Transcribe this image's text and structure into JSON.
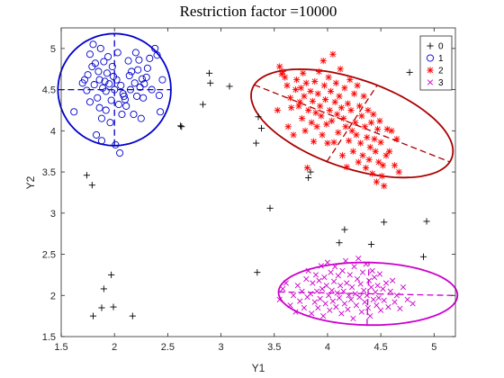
{
  "chart_data": {
    "type": "scatter",
    "title": "Restriction factor =10000",
    "xlabel": "Y1",
    "ylabel": "Y2",
    "xlim": [
      1.5,
      5.2
    ],
    "ylim": [
      1.5,
      5.25
    ],
    "xticks": [
      1.5,
      2,
      2.5,
      3,
      3.5,
      4,
      4.5,
      5
    ],
    "xtick_labels": [
      "1.5",
      "2",
      "2.5",
      "3",
      "3.5",
      "4",
      "4.5",
      "5"
    ],
    "yticks": [
      1.5,
      2,
      2.5,
      3,
      3.5,
      4,
      4.5,
      5
    ],
    "ytick_labels": [
      "1.5",
      "2",
      "2.5",
      "3",
      "3.5",
      "4",
      "4.5",
      "5"
    ],
    "grid": false,
    "legend_position": "top-right",
    "series": [
      {
        "name": "0",
        "marker": "plus",
        "color": "#000000",
        "points": [
          [
            1.74,
            3.46
          ],
          [
            1.79,
            3.34
          ],
          [
            1.8,
            1.75
          ],
          [
            1.88,
            1.85
          ],
          [
            1.9,
            2.08
          ],
          [
            1.97,
            2.25
          ],
          [
            1.99,
            1.86
          ],
          [
            2.17,
            1.75
          ],
          [
            2.62,
            4.06
          ],
          [
            2.63,
            4.05
          ],
          [
            2.83,
            4.32
          ],
          [
            2.89,
            4.7
          ],
          [
            2.9,
            4.58
          ],
          [
            3.08,
            4.54
          ],
          [
            3.33,
            3.85
          ],
          [
            3.34,
            2.28
          ],
          [
            3.35,
            4.17
          ],
          [
            3.38,
            4.03
          ],
          [
            3.46,
            3.06
          ],
          [
            3.82,
            3.43
          ],
          [
            3.84,
            3.5
          ],
          [
            4.11,
            2.64
          ],
          [
            4.16,
            2.8
          ],
          [
            4.41,
            2.62
          ],
          [
            4.53,
            2.89
          ],
          [
            4.77,
            4.71
          ],
          [
            4.9,
            2.47
          ],
          [
            4.93,
            2.9
          ]
        ]
      },
      {
        "name": "1",
        "marker": "circle",
        "color": "#0000cc",
        "points": [
          [
            1.62,
            4.23
          ],
          [
            1.7,
            4.58
          ],
          [
            1.72,
            4.62
          ],
          [
            1.74,
            4.49
          ],
          [
            1.75,
            4.68
          ],
          [
            1.77,
            4.35
          ],
          [
            1.77,
            4.93
          ],
          [
            1.79,
            4.78
          ],
          [
            1.8,
            5.05
          ],
          [
            1.81,
            4.56
          ],
          [
            1.82,
            4.82
          ],
          [
            1.83,
            3.95
          ],
          [
            1.84,
            4.4
          ],
          [
            1.85,
            4.72
          ],
          [
            1.86,
            4.62
          ],
          [
            1.86,
            4.28
          ],
          [
            1.87,
            5.0
          ],
          [
            1.88,
            4.15
          ],
          [
            1.88,
            3.88
          ],
          [
            1.89,
            4.52
          ],
          [
            1.9,
            4.84
          ],
          [
            1.91,
            4.6
          ],
          [
            1.92,
            4.48
          ],
          [
            1.92,
            4.25
          ],
          [
            1.93,
            4.7
          ],
          [
            1.94,
            4.9
          ],
          [
            1.95,
            4.57
          ],
          [
            1.96,
            4.1
          ],
          [
            1.97,
            4.37
          ],
          [
            1.98,
            4.78
          ],
          [
            1.99,
            4.66
          ],
          [
            2.0,
            4.5
          ],
          [
            2.01,
            3.83
          ],
          [
            2.02,
            4.62
          ],
          [
            2.03,
            4.95
          ],
          [
            2.04,
            4.32
          ],
          [
            2.05,
            3.73
          ],
          [
            2.06,
            4.55
          ],
          [
            2.07,
            4.2
          ],
          [
            2.08,
            4.45
          ],
          [
            2.09,
            4.42
          ],
          [
            2.1,
            4.38
          ],
          [
            2.11,
            4.3
          ],
          [
            2.13,
            4.85
          ],
          [
            2.14,
            4.67
          ],
          [
            2.15,
            4.5
          ],
          [
            2.16,
            4.72
          ],
          [
            2.18,
            4.2
          ],
          [
            2.19,
            4.58
          ],
          [
            2.2,
            4.95
          ],
          [
            2.21,
            4.42
          ],
          [
            2.22,
            4.74
          ],
          [
            2.23,
            4.86
          ],
          [
            2.24,
            4.53
          ],
          [
            2.25,
            4.15
          ],
          [
            2.26,
            4.63
          ],
          [
            2.27,
            4.4
          ],
          [
            2.28,
            4.57
          ],
          [
            2.3,
            4.65
          ],
          [
            2.31,
            4.76
          ],
          [
            2.33,
            4.88
          ],
          [
            2.35,
            4.5
          ],
          [
            2.38,
            5.0
          ],
          [
            2.4,
            4.92
          ],
          [
            2.42,
            4.43
          ],
          [
            2.43,
            4.23
          ],
          [
            2.45,
            4.62
          ]
        ]
      },
      {
        "name": "2",
        "marker": "asterisk",
        "color": "#ff0000",
        "points": [
          [
            3.53,
            4.25
          ],
          [
            3.55,
            4.78
          ],
          [
            3.57,
            4.69
          ],
          [
            3.58,
            4.72
          ],
          [
            3.6,
            4.65
          ],
          [
            3.62,
            4.55
          ],
          [
            3.63,
            4.05
          ],
          [
            3.65,
            4.4
          ],
          [
            3.66,
            4.28
          ],
          [
            3.68,
            3.95
          ],
          [
            3.7,
            4.5
          ],
          [
            3.71,
            4.62
          ],
          [
            3.73,
            4.3
          ],
          [
            3.74,
            4.35
          ],
          [
            3.75,
            4.52
          ],
          [
            3.76,
            4.15
          ],
          [
            3.77,
            4.7
          ],
          [
            3.78,
            4.42
          ],
          [
            3.79,
            4.0
          ],
          [
            3.8,
            4.58
          ],
          [
            3.81,
            3.55
          ],
          [
            3.82,
            4.25
          ],
          [
            3.84,
            4.48
          ],
          [
            3.85,
            4.1
          ],
          [
            3.86,
            4.36
          ],
          [
            3.87,
            3.87
          ],
          [
            3.88,
            4.6
          ],
          [
            3.89,
            4.22
          ],
          [
            3.9,
            4.05
          ],
          [
            3.91,
            4.45
          ],
          [
            3.92,
            4.72
          ],
          [
            3.93,
            4.3
          ],
          [
            3.94,
            4.18
          ],
          [
            3.95,
            3.95
          ],
          [
            3.96,
            4.85
          ],
          [
            3.97,
            4.55
          ],
          [
            3.98,
            4.38
          ],
          [
            3.99,
            4.08
          ],
          [
            4.0,
            3.85
          ],
          [
            4.01,
            4.65
          ],
          [
            4.02,
            4.25
          ],
          [
            4.03,
            4.48
          ],
          [
            4.04,
            4.12
          ],
          [
            4.05,
            4.93
          ],
          [
            4.06,
            3.86
          ],
          [
            4.07,
            4.35
          ],
          [
            4.08,
            4.58
          ],
          [
            4.09,
            4.2
          ],
          [
            4.1,
            3.98
          ],
          [
            4.11,
            4.42
          ],
          [
            4.12,
            4.75
          ],
          [
            4.13,
            4.28
          ],
          [
            4.14,
            3.7
          ],
          [
            4.15,
            4.15
          ],
          [
            4.16,
            4.52
          ],
          [
            4.17,
            4.05
          ],
          [
            4.18,
            3.56
          ],
          [
            4.19,
            4.33
          ],
          [
            4.2,
            3.88
          ],
          [
            4.21,
            4.62
          ],
          [
            4.22,
            4.25
          ],
          [
            4.23,
            4.0
          ],
          [
            4.24,
            3.75
          ],
          [
            4.25,
            4.45
          ],
          [
            4.26,
            4.1
          ],
          [
            4.27,
            3.95
          ],
          [
            4.28,
            4.55
          ],
          [
            4.29,
            3.62
          ],
          [
            4.3,
            4.3
          ],
          [
            4.31,
            3.85
          ],
          [
            4.32,
            4.18
          ],
          [
            4.33,
            3.7
          ],
          [
            4.34,
            4.42
          ],
          [
            4.35,
            4.05
          ],
          [
            4.36,
            3.55
          ],
          [
            4.37,
            3.92
          ],
          [
            4.38,
            4.25
          ],
          [
            4.39,
            3.65
          ],
          [
            4.4,
            3.8
          ],
          [
            4.41,
            4.1
          ],
          [
            4.42,
            3.48
          ],
          [
            4.43,
            4.2
          ],
          [
            4.44,
            3.9
          ],
          [
            4.45,
            3.75
          ],
          [
            4.46,
            3.38
          ],
          [
            4.47,
            4.02
          ],
          [
            4.48,
            3.62
          ],
          [
            4.49,
            4.12
          ],
          [
            4.5,
            3.86
          ],
          [
            4.51,
            3.45
          ],
          [
            4.52,
            3.58
          ],
          [
            4.53,
            3.33
          ],
          [
            4.55,
            3.7
          ],
          [
            4.56,
            4.02
          ],
          [
            4.58,
            3.75
          ],
          [
            4.6,
            4.0
          ],
          [
            4.63,
            3.58
          ],
          [
            4.65,
            3.9
          ],
          [
            4.67,
            3.5
          ]
        ]
      },
      {
        "name": "3",
        "marker": "x",
        "color": "#cc00cc",
        "points": [
          [
            3.55,
            1.95
          ],
          [
            3.58,
            2.08
          ],
          [
            3.61,
            2.15
          ],
          [
            3.65,
            1.88
          ],
          [
            3.68,
            2.0
          ],
          [
            3.7,
            1.8
          ],
          [
            3.72,
            2.12
          ],
          [
            3.74,
            1.93
          ],
          [
            3.76,
            2.05
          ],
          [
            3.78,
            1.85
          ],
          [
            3.8,
            2.2
          ],
          [
            3.81,
            1.98
          ],
          [
            3.82,
            2.3
          ],
          [
            3.84,
            2.02
          ],
          [
            3.85,
            1.78
          ],
          [
            3.86,
            2.15
          ],
          [
            3.88,
            1.92
          ],
          [
            3.89,
            2.25
          ],
          [
            3.9,
            2.05
          ],
          [
            3.91,
            1.85
          ],
          [
            3.92,
            2.18
          ],
          [
            3.93,
            1.96
          ],
          [
            3.94,
            2.36
          ],
          [
            3.95,
            2.08
          ],
          [
            3.96,
            1.75
          ],
          [
            3.97,
            2.22
          ],
          [
            3.98,
            1.9
          ],
          [
            3.99,
            2.12
          ],
          [
            4.0,
            2.4
          ],
          [
            4.01,
            2.0
          ],
          [
            4.02,
            1.82
          ],
          [
            4.03,
            2.28
          ],
          [
            4.04,
            2.06
          ],
          [
            4.05,
            1.93
          ],
          [
            4.06,
            2.17
          ],
          [
            4.07,
            2.35
          ],
          [
            4.08,
            1.86
          ],
          [
            4.09,
            2.03
          ],
          [
            4.1,
            2.24
          ],
          [
            4.11,
            1.97
          ],
          [
            4.12,
            2.12
          ],
          [
            4.13,
            1.78
          ],
          [
            4.14,
            2.3
          ],
          [
            4.15,
            2.05
          ],
          [
            4.16,
            1.9
          ],
          [
            4.17,
            2.42
          ],
          [
            4.18,
            2.15
          ],
          [
            4.19,
            1.83
          ],
          [
            4.2,
            2.0
          ],
          [
            4.21,
            2.25
          ],
          [
            4.22,
            1.95
          ],
          [
            4.23,
            2.1
          ],
          [
            4.24,
            1.72
          ],
          [
            4.25,
            2.35
          ],
          [
            4.26,
            2.02
          ],
          [
            4.27,
            1.88
          ],
          [
            4.28,
            2.2
          ],
          [
            4.29,
            2.45
          ],
          [
            4.3,
            1.98
          ],
          [
            4.31,
            2.14
          ],
          [
            4.32,
            1.8
          ],
          [
            4.33,
            2.28
          ],
          [
            4.34,
            2.06
          ],
          [
            4.35,
            1.92
          ],
          [
            4.36,
            2.38
          ],
          [
            4.37,
            2.0
          ],
          [
            4.38,
            1.85
          ],
          [
            4.39,
            2.18
          ],
          [
            4.4,
            1.75
          ],
          [
            4.41,
            2.1
          ],
          [
            4.42,
            2.3
          ],
          [
            4.43,
            1.95
          ],
          [
            4.44,
            2.22
          ],
          [
            4.45,
            2.04
          ],
          [
            4.46,
            1.88
          ],
          [
            4.47,
            2.12
          ],
          [
            4.48,
            1.97
          ],
          [
            4.49,
            2.26
          ],
          [
            4.5,
            1.82
          ],
          [
            4.52,
            2.08
          ],
          [
            4.53,
            1.94
          ],
          [
            4.55,
            2.15
          ],
          [
            4.57,
            1.86
          ],
          [
            4.59,
            2.05
          ],
          [
            4.61,
            2.18
          ],
          [
            4.63,
            1.92
          ],
          [
            4.65,
            2.0
          ],
          [
            4.68,
            1.84
          ],
          [
            4.71,
            2.1
          ],
          [
            4.75,
            1.95
          ],
          [
            4.8,
            1.9
          ]
        ]
      }
    ],
    "ellipses": [
      {
        "color": "#0000cc",
        "center": [
          2.0,
          4.5
        ],
        "semi_axis_1": 0.53,
        "semi_axis_2": 0.68,
        "angle_deg": 0
      },
      {
        "color": "#aa0000",
        "center": [
          4.23,
          4.09
        ],
        "semi_axis_1": 1.03,
        "semi_axis_2": 0.52,
        "angle_deg": -27
      },
      {
        "color": "#cc00cc",
        "center": [
          4.38,
          2.02
        ],
        "semi_axis_1": 0.84,
        "semi_axis_2": 0.38,
        "angle_deg": -1.5
      }
    ]
  }
}
